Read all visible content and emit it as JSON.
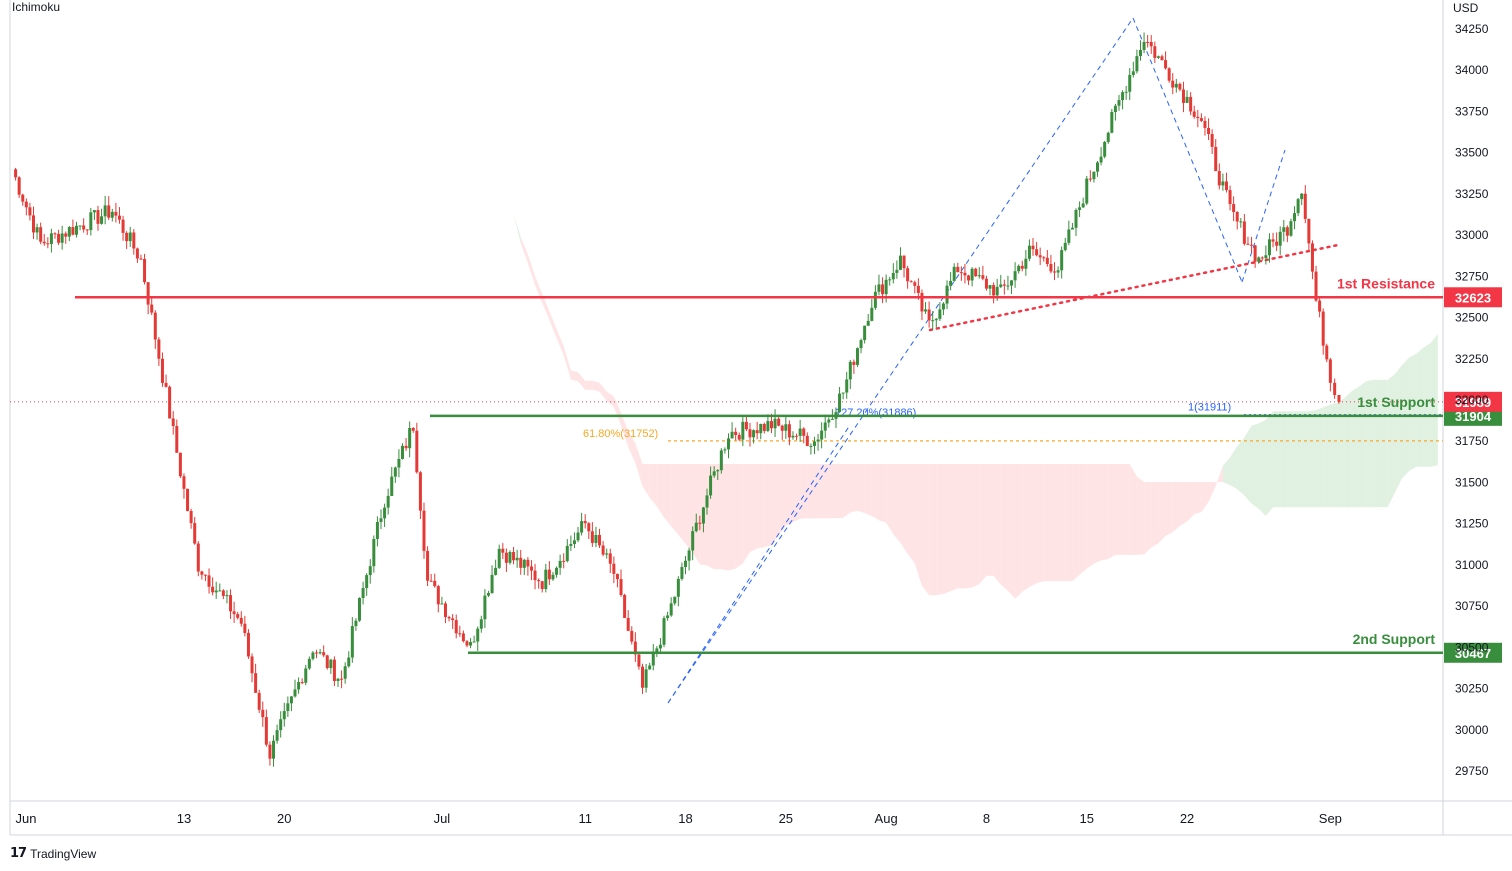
{
  "indicator_label": "Ichimoku",
  "currency": "USD",
  "brand": "TradingView",
  "colors": {
    "up": "#26a69a",
    "candle_up": "#388e3c",
    "candle_down": "#e53935",
    "resistance": "#f23645",
    "support": "#388e3c",
    "cloud_green": "#c8e6c9",
    "cloud_red": "#ffcdd2",
    "fib": "#2962ff",
    "fib_618": "#f9a825"
  },
  "chart_data": {
    "type": "candlestick",
    "title": "",
    "ylabel": "USD",
    "ylim": [
      29620,
      34370
    ],
    "yticks": [
      29750,
      30000,
      30250,
      30500,
      30750,
      31000,
      31250,
      31500,
      31750,
      32000,
      32250,
      32500,
      32750,
      33000,
      33250,
      33500,
      33750,
      34000,
      34250
    ],
    "xticks": [
      "Jun",
      "13",
      "20",
      "Jul",
      "11",
      "18",
      "25",
      "Aug",
      "8",
      "15",
      "22",
      "Sep"
    ],
    "grid": false,
    "close_series_anchor": [
      {
        "date": "Jun 1",
        "value": 33400
      },
      {
        "date": "Jun 3",
        "value": 32950
      },
      {
        "date": "Jun 8",
        "value": 33150
      },
      {
        "date": "Jun 10",
        "value": 32850
      },
      {
        "date": "Jun 13",
        "value": 31450
      },
      {
        "date": "Jun 14",
        "value": 31000
      },
      {
        "date": "Jun 17",
        "value": 30650
      },
      {
        "date": "Jun 19",
        "value": 29850
      },
      {
        "date": "Jun 22",
        "value": 30500
      },
      {
        "date": "Jun 24",
        "value": 30300
      },
      {
        "date": "Jun 27",
        "value": 31400
      },
      {
        "date": "Jun 29",
        "value": 31850
      },
      {
        "date": "Jun 30",
        "value": 30900
      },
      {
        "date": "Jul 3",
        "value": 30500
      },
      {
        "date": "Jul 5",
        "value": 31100
      },
      {
        "date": "Jul 8",
        "value": 30900
      },
      {
        "date": "Jul 11",
        "value": 31250
      },
      {
        "date": "Jul 13",
        "value": 30950
      },
      {
        "date": "Jul 15",
        "value": 30250
      },
      {
        "date": "Jul 17",
        "value": 30750
      },
      {
        "date": "Jul 19",
        "value": 31300
      },
      {
        "date": "Jul 21",
        "value": 31800
      },
      {
        "date": "Jul 24",
        "value": 31850
      },
      {
        "date": "Jul 27",
        "value": 31750
      },
      {
        "date": "Jul 29",
        "value": 32050
      },
      {
        "date": "Jul 31",
        "value": 32600
      },
      {
        "date": "Aug 2",
        "value": 32850
      },
      {
        "date": "Aug 4",
        "value": 32450
      },
      {
        "date": "Aug 6",
        "value": 32800
      },
      {
        "date": "Aug 9",
        "value": 32650
      },
      {
        "date": "Aug 11",
        "value": 32900
      },
      {
        "date": "Aug 13",
        "value": 32800
      },
      {
        "date": "Aug 15",
        "value": 33300
      },
      {
        "date": "Aug 17",
        "value": 33750
      },
      {
        "date": "Aug 19",
        "value": 34200
      },
      {
        "date": "Aug 21",
        "value": 33950
      },
      {
        "date": "Aug 23",
        "value": 33700
      },
      {
        "date": "Aug 25",
        "value": 33150
      },
      {
        "date": "Aug 27",
        "value": 32850
      },
      {
        "date": "Aug 29",
        "value": 33050
      },
      {
        "date": "Aug 30",
        "value": 33300
      },
      {
        "date": "Aug 31",
        "value": 32600
      },
      {
        "date": "Sep 1",
        "value": 32150
      },
      {
        "date": "Sep 1b",
        "value": 31989
      }
    ],
    "levels": [
      {
        "name": "1st Resistance",
        "value": 32623,
        "price_label": "32623",
        "color": "#f23645"
      },
      {
        "name": "1st Support",
        "value": 31904,
        "price_label": "31904",
        "color": "#388e3c"
      },
      {
        "name": "2nd Support",
        "value": 30467,
        "price_label": "30467",
        "color": "#388e3c"
      }
    ],
    "last_price": {
      "value": 31989,
      "label": "31989",
      "color": "#f23645"
    },
    "fibonacci": [
      {
        "label": "61.80%(31752)",
        "value": 31752,
        "color": "#f9a825"
      },
      {
        "label": "127.20%(31886)",
        "value": 31886,
        "color": "#2962ff"
      },
      {
        "label": "1(31911)",
        "value": 31911,
        "color": "#2962ff"
      }
    ]
  }
}
